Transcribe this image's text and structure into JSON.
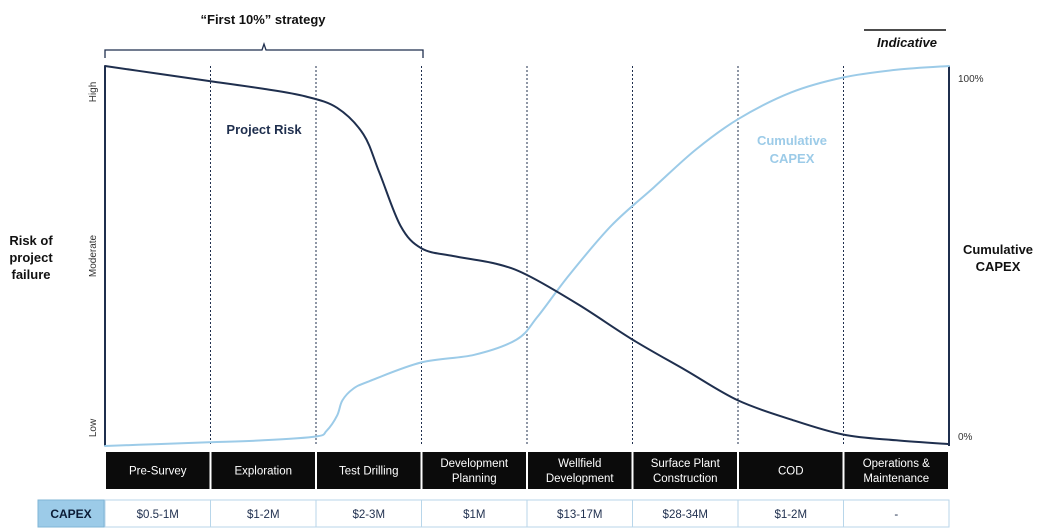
{
  "bracket_label": "“First 10%” strategy",
  "indicative_label": "Indicative",
  "left_axis": {
    "title_lines": [
      "Risk of",
      "project",
      "failure"
    ],
    "ticks": [
      "High",
      "Moderate",
      "Low"
    ]
  },
  "right_axis": {
    "title_lines": [
      "Cumulative",
      "CAPEX"
    ],
    "ticks": [
      "100%",
      "0%"
    ]
  },
  "colors": {
    "risk": "#1f2f4e",
    "capex": "#9ccbe8",
    "capex_header_bg": "#9ccbe8",
    "stage_bg": "#0b0b0b"
  },
  "chart_data": {
    "type": "line",
    "categories": [
      "Pre-Survey",
      "Exploration",
      "Test Drilling",
      "Development Planning",
      "Wellfield Development",
      "Surface Plant Construction",
      "COD",
      "Operations & Maintenance"
    ],
    "x_axis_note": "continuous position across the eight stages, 0 = start of Pre-Survey, 8 = end of Operations & Maintenance",
    "series": [
      {
        "name": "Project Risk",
        "axis": "left",
        "x": [
          0,
          0.5,
          1,
          1.5,
          1.9,
          2.2,
          2.45,
          2.6,
          2.8,
          3.0,
          3.3,
          3.7,
          4.0,
          4.5,
          5.0,
          5.5,
          6.0,
          6.5,
          7.0,
          7.5,
          8.0
        ],
        "values": [
          100,
          98,
          96,
          94,
          92,
          89,
          82,
          72,
          58,
          52,
          50,
          48,
          45,
          37,
          28,
          20,
          12,
          7,
          3,
          1.5,
          0.5
        ]
      },
      {
        "name": "Cumulative CAPEX",
        "axis": "right",
        "x": [
          0,
          0.5,
          1,
          1.5,
          2.0,
          2.1,
          2.2,
          2.25,
          2.35,
          2.5,
          3.0,
          3.5,
          3.9,
          4.1,
          4.4,
          4.8,
          5.2,
          5.6,
          6.0,
          6.5,
          7.0,
          7.5,
          8.0
        ],
        "values": [
          0,
          0.5,
          1,
          1.5,
          2.5,
          4,
          8,
          12,
          15,
          17,
          22,
          24,
          28,
          34,
          45,
          58,
          68,
          78,
          86,
          93,
          97,
          99,
          100
        ]
      }
    ],
    "annotations": [
      "Project Risk",
      "Cumulative CAPEX"
    ],
    "annotation_lines": {
      "risk": [
        "Project Risk"
      ],
      "capex": [
        "Cumulative",
        "CAPEX"
      ]
    },
    "ylim_left": [
      0,
      100
    ],
    "ylim_right": [
      0,
      100
    ],
    "stage_labels": [
      [
        "Pre-Survey"
      ],
      [
        "Exploration"
      ],
      [
        "Test Drilling"
      ],
      [
        "Development",
        "Planning"
      ],
      [
        "Wellfield",
        "Development"
      ],
      [
        "Surface Plant",
        "Construction"
      ],
      [
        "COD"
      ],
      [
        "Operations &",
        "Maintenance"
      ]
    ],
    "capex_table": {
      "header": "CAPEX",
      "values": [
        "$0.5-1M",
        "$1-2M",
        "$2-3M",
        "$1M",
        "$13-17M",
        "$28-34M",
        "$1-2M",
        "-"
      ]
    },
    "grid": "vertical dotted lines between stages",
    "legend": "none (inline labels)"
  }
}
